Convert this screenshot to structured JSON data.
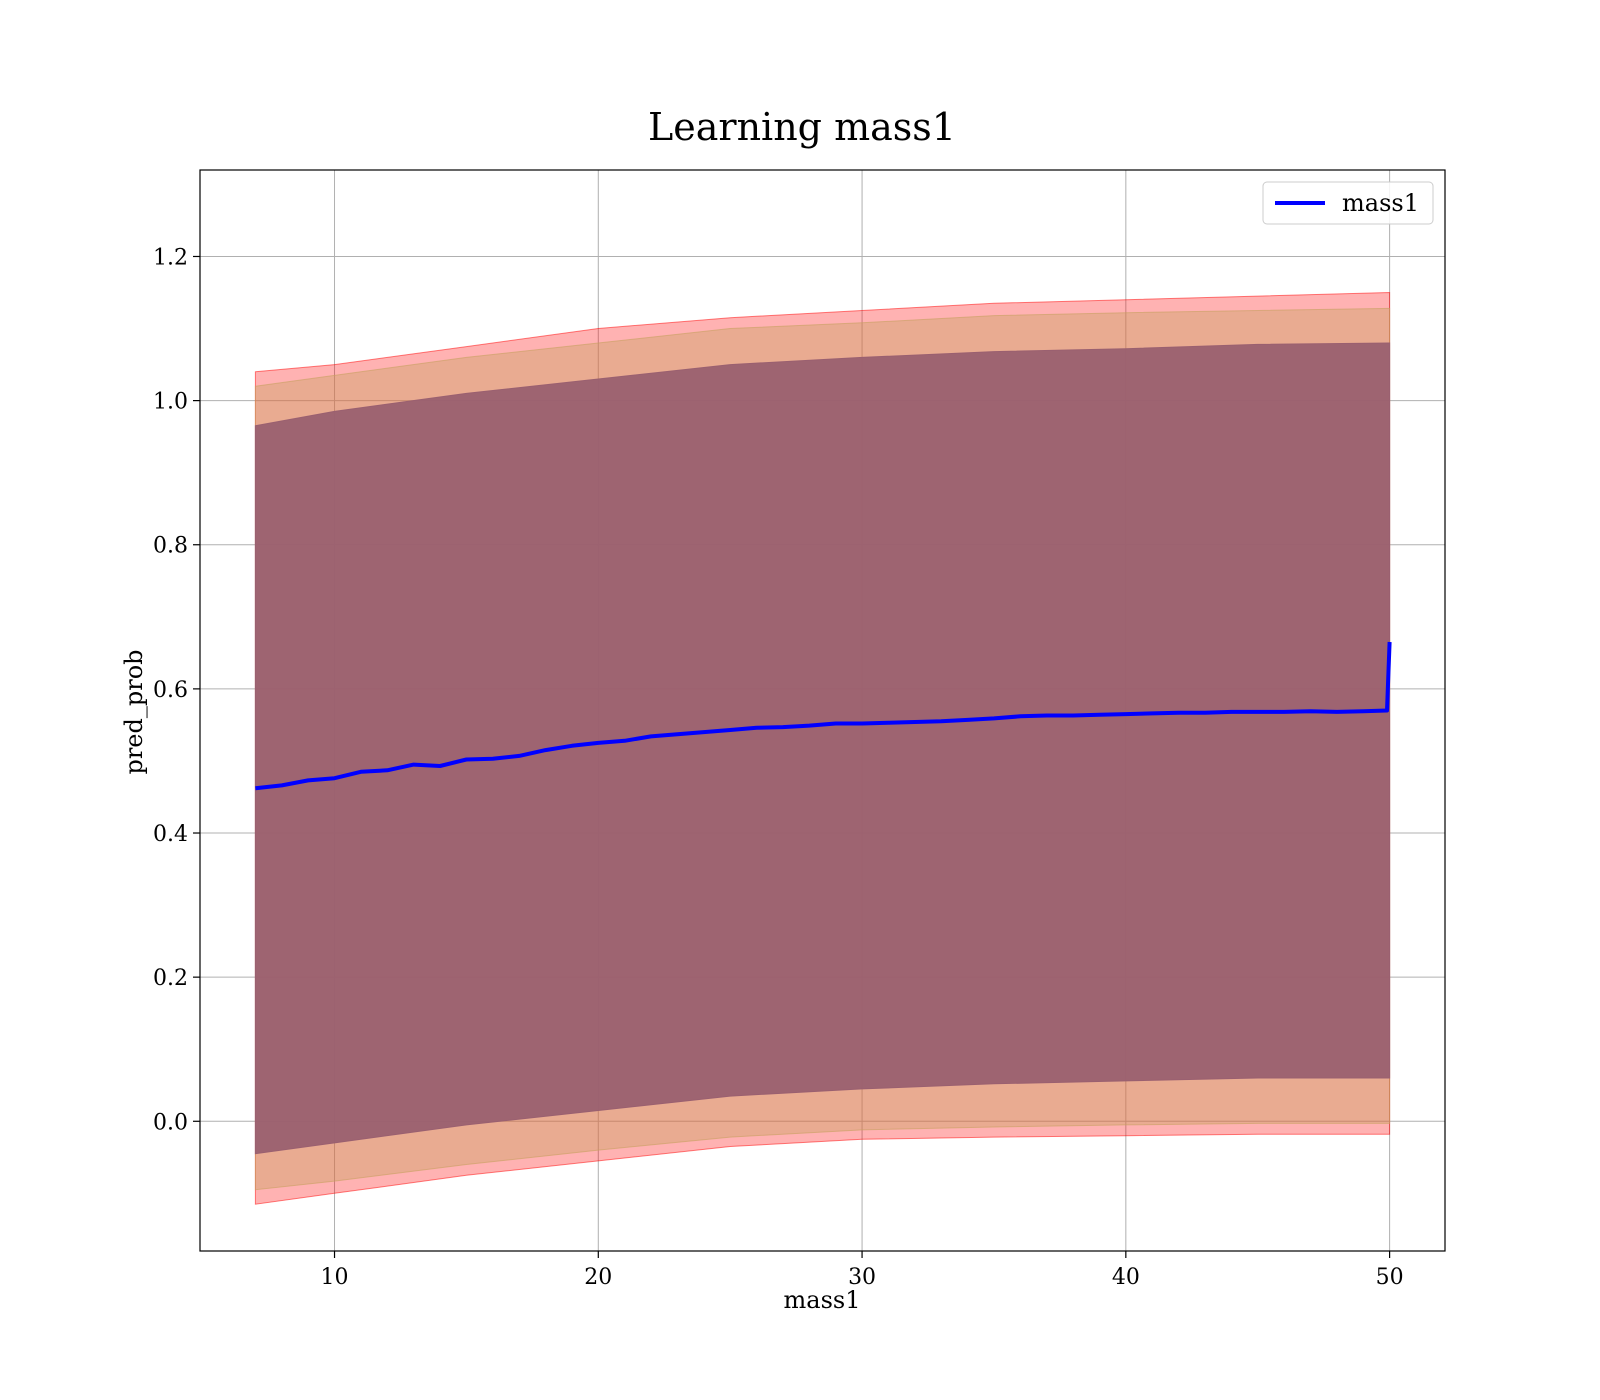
{
  "chart_data": {
    "type": "line",
    "title": "Learning mass1",
    "xlabel": "mass1",
    "ylabel": "pred_prob",
    "xlim": [
      4.9,
      52.1
    ],
    "ylim": [
      -0.18,
      1.32
    ],
    "xticks": [
      10,
      20,
      30,
      40,
      50
    ],
    "yticks": [
      0.0,
      0.2,
      0.4,
      0.6,
      0.8,
      1.0,
      1.2
    ],
    "xtick_labels": [
      "10",
      "20",
      "30",
      "40",
      "50"
    ],
    "ytick_labels": [
      "0.0",
      "0.2",
      "0.4",
      "0.6",
      "0.8",
      "1.0",
      "1.2"
    ],
    "grid": true,
    "legend_position": "top-right",
    "series": [
      {
        "name": "mass1",
        "color": "#0000ff",
        "x": [
          7,
          8,
          9,
          10,
          11,
          12,
          13,
          14,
          15,
          16,
          17,
          18,
          19,
          20,
          21,
          22,
          23,
          24,
          25,
          26,
          27,
          28,
          29,
          30,
          31,
          32,
          33,
          34,
          35,
          36,
          37,
          38,
          39,
          40,
          41,
          42,
          43,
          44,
          45,
          46,
          47,
          48,
          49,
          49.9,
          50
        ],
        "y": [
          0.462,
          0.466,
          0.473,
          0.476,
          0.485,
          0.487,
          0.495,
          0.493,
          0.502,
          0.503,
          0.507,
          0.515,
          0.521,
          0.525,
          0.528,
          0.534,
          0.537,
          0.54,
          0.543,
          0.546,
          0.547,
          0.549,
          0.552,
          0.552,
          0.553,
          0.554,
          0.555,
          0.557,
          0.559,
          0.562,
          0.563,
          0.563,
          0.564,
          0.565,
          0.566,
          0.567,
          0.567,
          0.568,
          0.568,
          0.568,
          0.569,
          0.568,
          0.569,
          0.57,
          0.665
        ]
      }
    ],
    "bands": [
      {
        "color": "#ff0000",
        "opacity": 0.3,
        "x": [
          7,
          10,
          15,
          20,
          25,
          30,
          35,
          40,
          45,
          50
        ],
        "lower": [
          -0.115,
          -0.1,
          -0.075,
          -0.055,
          -0.035,
          -0.025,
          -0.022,
          -0.02,
          -0.018,
          -0.018
        ],
        "upper": [
          1.04,
          1.05,
          1.075,
          1.1,
          1.115,
          1.125,
          1.135,
          1.14,
          1.145,
          1.15
        ]
      },
      {
        "color": "#c8a060",
        "opacity": 0.4,
        "x": [
          7,
          10,
          15,
          20,
          25,
          30,
          35,
          40,
          45,
          50
        ],
        "lower": [
          -0.095,
          -0.083,
          -0.06,
          -0.04,
          -0.022,
          -0.012,
          -0.008,
          -0.005,
          -0.003,
          -0.003
        ],
        "upper": [
          1.02,
          1.035,
          1.06,
          1.08,
          1.1,
          1.108,
          1.118,
          1.122,
          1.125,
          1.128
        ]
      },
      {
        "color": "#9a6070",
        "opacity": 0.95,
        "x": [
          7,
          10,
          15,
          20,
          25,
          30,
          35,
          40,
          45,
          50
        ],
        "lower": [
          -0.045,
          -0.03,
          -0.005,
          0.015,
          0.035,
          0.045,
          0.052,
          0.056,
          0.06,
          0.06
        ],
        "upper": [
          0.965,
          0.985,
          1.01,
          1.03,
          1.05,
          1.06,
          1.068,
          1.072,
          1.078,
          1.08
        ]
      }
    ]
  }
}
